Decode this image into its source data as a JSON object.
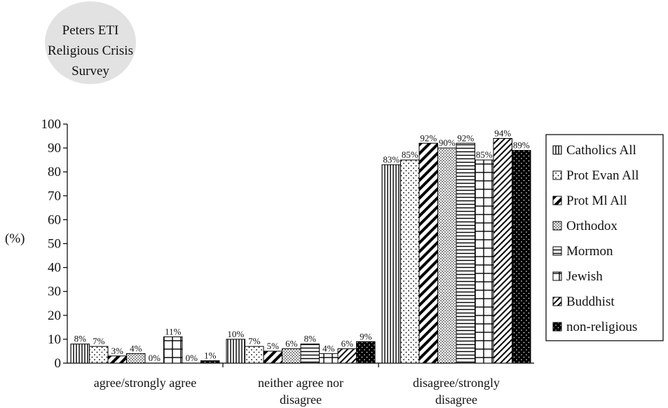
{
  "survey_badge": {
    "lines": [
      "Peters ETI",
      "Religious Crisis",
      "Survey"
    ]
  },
  "chart_data": {
    "type": "bar",
    "categories": [
      [
        "agree/strongly agree"
      ],
      [
        "neither agree nor",
        "disagree"
      ],
      [
        "disagree/strongly",
        "disagree"
      ]
    ],
    "ylabel": "(%)",
    "ylim": [
      0,
      100
    ],
    "yticks": [
      0,
      10,
      20,
      30,
      40,
      50,
      60,
      70,
      80,
      90,
      100
    ],
    "grid": false,
    "legend_position": "right",
    "series": [
      {
        "name": "Catholics All",
        "pattern": "vertical-lines",
        "values": [
          8,
          10,
          83
        ],
        "labels": [
          "8%",
          "10%",
          "83%"
        ]
      },
      {
        "name": "Prot Evan All",
        "pattern": "sparse-dots",
        "values": [
          7,
          7,
          85
        ],
        "labels": [
          "7%",
          "7%",
          "85%"
        ]
      },
      {
        "name": "Prot Ml All",
        "pattern": "wide-diagonal",
        "values": [
          3,
          5,
          92
        ],
        "labels": [
          "3%",
          "5%",
          "92%"
        ]
      },
      {
        "name": "Orthodox",
        "pattern": "dense-dots",
        "values": [
          4,
          6,
          90
        ],
        "labels": [
          "4%",
          "6%",
          "90%"
        ]
      },
      {
        "name": "Mormon",
        "pattern": "horizontal-lines",
        "values": [
          0,
          8,
          92
        ],
        "labels": [
          "0%",
          "8%",
          "92%"
        ]
      },
      {
        "name": "Jewish",
        "pattern": "grid",
        "values": [
          11,
          4,
          85
        ],
        "labels": [
          "11%",
          "4%",
          "85%"
        ]
      },
      {
        "name": "Buddhist",
        "pattern": "narrow-diagonal",
        "values": [
          0,
          6,
          94
        ],
        "labels": [
          "0%",
          "6%",
          "94%"
        ]
      },
      {
        "name": "non-religious",
        "pattern": "black-dotted",
        "values": [
          1,
          9,
          89
        ],
        "labels": [
          "1%",
          "9%",
          "89%"
        ]
      }
    ]
  }
}
